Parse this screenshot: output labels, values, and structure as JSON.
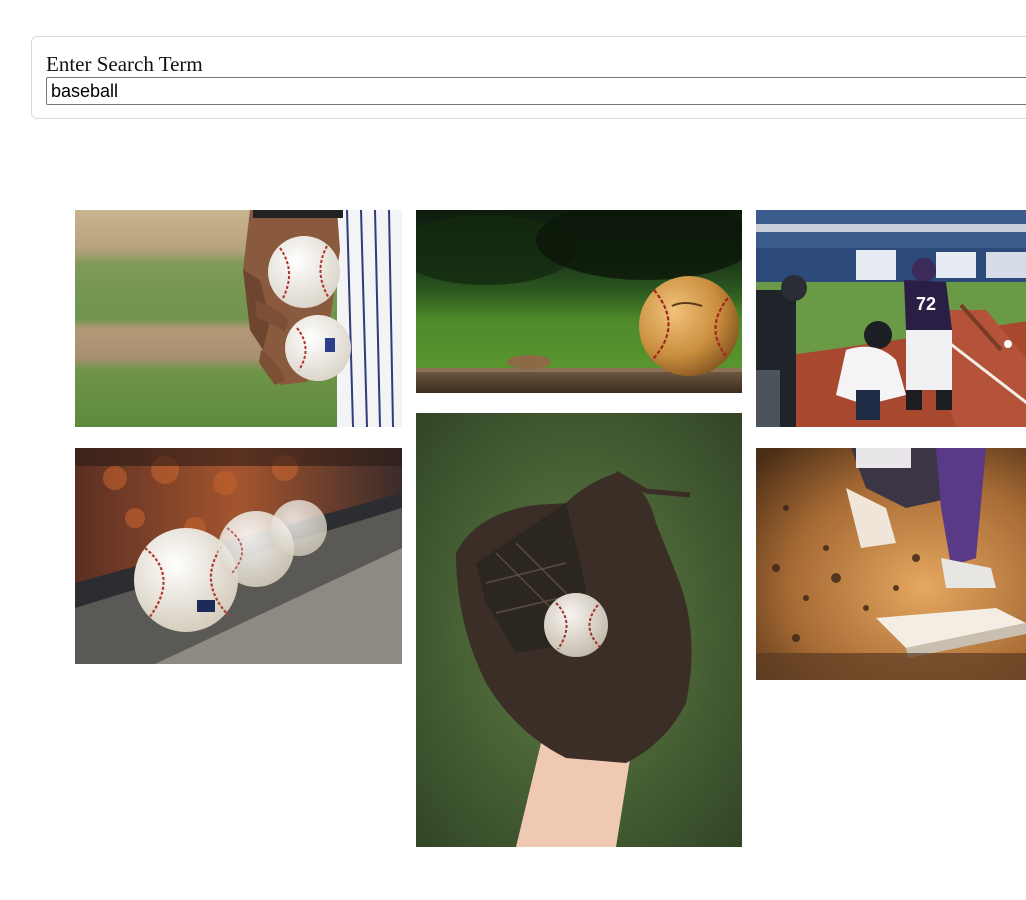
{
  "search": {
    "label": "Enter Search Term",
    "value": "baseball"
  },
  "results": [
    {
      "subject": "pitcher-holding-baseballs"
    },
    {
      "subject": "baseball-on-wooden-plank"
    },
    {
      "subject": "batter-catcher-umpire"
    },
    {
      "subject": "baseballs-on-dugout-ledge"
    },
    {
      "subject": "baseball-in-glove"
    },
    {
      "subject": "player-sliding-into-base"
    }
  ]
}
